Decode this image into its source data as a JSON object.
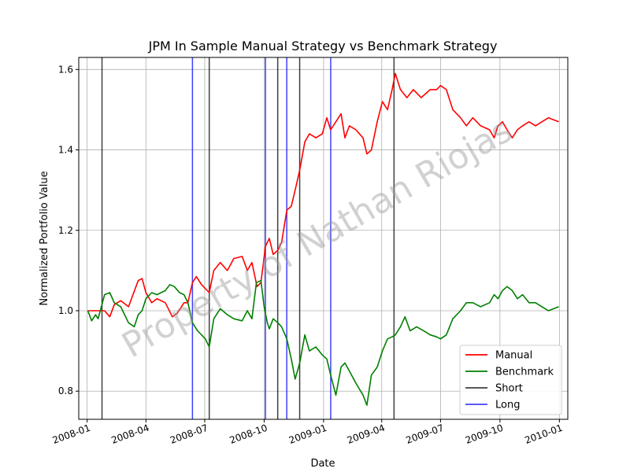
{
  "chart_data": {
    "type": "line",
    "title": "JPM In Sample Manual Strategy vs Benchmark Strategy",
    "xlabel": "Date",
    "ylabel": "Normalized Portfolio Value",
    "xlim": [
      "2007-12-19",
      "2010-01-14"
    ],
    "ylim": [
      0.73,
      1.63
    ],
    "x_ticks": [
      "2008-01",
      "2008-04",
      "2008-07",
      "2008-10",
      "2009-01",
      "2009-04",
      "2009-07",
      "2009-10",
      "2010-01"
    ],
    "y_ticks": [
      0.8,
      1.0,
      1.2,
      1.4,
      1.6
    ],
    "grid": true,
    "legend_position": "lower right",
    "watermark": "Property of Nathan Riojas",
    "series": [
      {
        "name": "Manual",
        "color": "#ff0000",
        "points": [
          [
            "2008-01-02",
            1.0
          ],
          [
            "2008-01-28",
            1.0
          ],
          [
            "2008-02-05",
            0.985
          ],
          [
            "2008-02-12",
            1.015
          ],
          [
            "2008-02-22",
            1.025
          ],
          [
            "2008-03-05",
            1.01
          ],
          [
            "2008-03-20",
            1.075
          ],
          [
            "2008-03-26",
            1.08
          ],
          [
            "2008-04-01",
            1.045
          ],
          [
            "2008-04-10",
            1.02
          ],
          [
            "2008-04-18",
            1.03
          ],
          [
            "2008-05-01",
            1.02
          ],
          [
            "2008-05-12",
            0.985
          ],
          [
            "2008-05-20",
            0.995
          ],
          [
            "2008-05-30",
            1.02
          ],
          [
            "2008-06-05",
            1.02
          ],
          [
            "2008-06-12",
            1.07
          ],
          [
            "2008-06-18",
            1.085
          ],
          [
            "2008-06-26",
            1.065
          ],
          [
            "2008-07-08",
            1.045
          ],
          [
            "2008-07-15",
            1.1
          ],
          [
            "2008-07-25",
            1.12
          ],
          [
            "2008-08-05",
            1.1
          ],
          [
            "2008-08-15",
            1.13
          ],
          [
            "2008-08-28",
            1.135
          ],
          [
            "2008-09-05",
            1.1
          ],
          [
            "2008-09-12",
            1.12
          ],
          [
            "2008-09-20",
            1.06
          ],
          [
            "2008-09-26",
            1.07
          ],
          [
            "2008-10-03",
            1.16
          ],
          [
            "2008-10-09",
            1.18
          ],
          [
            "2008-10-15",
            1.14
          ],
          [
            "2008-10-22",
            1.15
          ],
          [
            "2008-10-28",
            1.17
          ],
          [
            "2008-11-05",
            1.25
          ],
          [
            "2008-11-12",
            1.26
          ],
          [
            "2008-11-18",
            1.3
          ],
          [
            "2008-11-25",
            1.35
          ],
          [
            "2008-12-03",
            1.42
          ],
          [
            "2008-12-10",
            1.44
          ],
          [
            "2008-12-20",
            1.43
          ],
          [
            "2008-12-30",
            1.44
          ],
          [
            "2009-01-06",
            1.48
          ],
          [
            "2009-01-12",
            1.45
          ],
          [
            "2009-01-20",
            1.47
          ],
          [
            "2009-01-28",
            1.49
          ],
          [
            "2009-02-03",
            1.43
          ],
          [
            "2009-02-10",
            1.46
          ],
          [
            "2009-02-20",
            1.45
          ],
          [
            "2009-03-03",
            1.43
          ],
          [
            "2009-03-09",
            1.39
          ],
          [
            "2009-03-16",
            1.4
          ],
          [
            "2009-03-25",
            1.47
          ],
          [
            "2009-04-02",
            1.52
          ],
          [
            "2009-04-10",
            1.5
          ],
          [
            "2009-04-17",
            1.55
          ],
          [
            "2009-04-22",
            1.59
          ],
          [
            "2009-04-30",
            1.55
          ],
          [
            "2009-05-10",
            1.53
          ],
          [
            "2009-05-20",
            1.55
          ],
          [
            "2009-06-01",
            1.53
          ],
          [
            "2009-06-15",
            1.55
          ],
          [
            "2009-06-25",
            1.55
          ],
          [
            "2009-07-01",
            1.56
          ],
          [
            "2009-07-10",
            1.55
          ],
          [
            "2009-07-20",
            1.5
          ],
          [
            "2009-08-01",
            1.48
          ],
          [
            "2009-08-10",
            1.46
          ],
          [
            "2009-08-20",
            1.48
          ],
          [
            "2009-09-01",
            1.46
          ],
          [
            "2009-09-15",
            1.45
          ],
          [
            "2009-09-22",
            1.43
          ],
          [
            "2009-09-28",
            1.46
          ],
          [
            "2009-10-05",
            1.47
          ],
          [
            "2009-10-12",
            1.45
          ],
          [
            "2009-10-20",
            1.43
          ],
          [
            "2009-10-28",
            1.45
          ],
          [
            "2009-11-05",
            1.46
          ],
          [
            "2009-11-15",
            1.47
          ],
          [
            "2009-11-25",
            1.46
          ],
          [
            "2009-12-05",
            1.47
          ],
          [
            "2009-12-15",
            1.48
          ],
          [
            "2009-12-31",
            1.47
          ]
        ]
      },
      {
        "name": "Benchmark",
        "color": "#008000",
        "points": [
          [
            "2008-01-02",
            1.0
          ],
          [
            "2008-01-08",
            0.975
          ],
          [
            "2008-01-14",
            0.99
          ],
          [
            "2008-01-18",
            0.98
          ],
          [
            "2008-01-28",
            1.04
          ],
          [
            "2008-02-05",
            1.045
          ],
          [
            "2008-02-12",
            1.02
          ],
          [
            "2008-02-22",
            1.01
          ],
          [
            "2008-03-05",
            0.97
          ],
          [
            "2008-03-14",
            0.96
          ],
          [
            "2008-03-20",
            0.99
          ],
          [
            "2008-03-26",
            1.0
          ],
          [
            "2008-04-01",
            1.03
          ],
          [
            "2008-04-10",
            1.045
          ],
          [
            "2008-04-18",
            1.04
          ],
          [
            "2008-05-01",
            1.05
          ],
          [
            "2008-05-08",
            1.065
          ],
          [
            "2008-05-15",
            1.06
          ],
          [
            "2008-05-23",
            1.045
          ],
          [
            "2008-05-30",
            1.04
          ],
          [
            "2008-06-05",
            1.02
          ],
          [
            "2008-06-12",
            0.97
          ],
          [
            "2008-06-20",
            0.95
          ],
          [
            "2008-06-26",
            0.94
          ],
          [
            "2008-07-02",
            0.93
          ],
          [
            "2008-07-08",
            0.91
          ],
          [
            "2008-07-15",
            0.98
          ],
          [
            "2008-07-25",
            1.005
          ],
          [
            "2008-08-05",
            0.99
          ],
          [
            "2008-08-15",
            0.98
          ],
          [
            "2008-08-28",
            0.975
          ],
          [
            "2008-09-05",
            1.0
          ],
          [
            "2008-09-12",
            0.98
          ],
          [
            "2008-09-19",
            1.07
          ],
          [
            "2008-09-26",
            1.075
          ],
          [
            "2008-10-01",
            1.01
          ],
          [
            "2008-10-06",
            0.97
          ],
          [
            "2008-10-09",
            0.955
          ],
          [
            "2008-10-15",
            0.98
          ],
          [
            "2008-10-22",
            0.97
          ],
          [
            "2008-10-28",
            0.96
          ],
          [
            "2008-11-05",
            0.93
          ],
          [
            "2008-11-12",
            0.88
          ],
          [
            "2008-11-18",
            0.83
          ],
          [
            "2008-11-25",
            0.87
          ],
          [
            "2008-12-03",
            0.94
          ],
          [
            "2008-12-10",
            0.9
          ],
          [
            "2008-12-20",
            0.91
          ],
          [
            "2008-12-30",
            0.89
          ],
          [
            "2009-01-06",
            0.88
          ],
          [
            "2009-01-12",
            0.84
          ],
          [
            "2009-01-20",
            0.79
          ],
          [
            "2009-01-28",
            0.86
          ],
          [
            "2009-02-03",
            0.87
          ],
          [
            "2009-02-10",
            0.85
          ],
          [
            "2009-02-20",
            0.82
          ],
          [
            "2009-03-03",
            0.79
          ],
          [
            "2009-03-09",
            0.765
          ],
          [
            "2009-03-16",
            0.84
          ],
          [
            "2009-03-25",
            0.86
          ],
          [
            "2009-04-02",
            0.9
          ],
          [
            "2009-04-10",
            0.93
          ],
          [
            "2009-04-17",
            0.935
          ],
          [
            "2009-04-22",
            0.94
          ],
          [
            "2009-04-30",
            0.96
          ],
          [
            "2009-05-07",
            0.985
          ],
          [
            "2009-05-15",
            0.95
          ],
          [
            "2009-05-25",
            0.96
          ],
          [
            "2009-06-05",
            0.95
          ],
          [
            "2009-06-15",
            0.94
          ],
          [
            "2009-06-25",
            0.935
          ],
          [
            "2009-07-01",
            0.93
          ],
          [
            "2009-07-10",
            0.94
          ],
          [
            "2009-07-20",
            0.98
          ],
          [
            "2009-08-01",
            1.0
          ],
          [
            "2009-08-10",
            1.02
          ],
          [
            "2009-08-20",
            1.02
          ],
          [
            "2009-09-01",
            1.01
          ],
          [
            "2009-09-15",
            1.02
          ],
          [
            "2009-09-22",
            1.04
          ],
          [
            "2009-09-28",
            1.03
          ],
          [
            "2009-10-05",
            1.05
          ],
          [
            "2009-10-12",
            1.06
          ],
          [
            "2009-10-20",
            1.05
          ],
          [
            "2009-10-28",
            1.03
          ],
          [
            "2009-11-05",
            1.04
          ],
          [
            "2009-11-15",
            1.02
          ],
          [
            "2009-11-25",
            1.02
          ],
          [
            "2009-12-05",
            1.01
          ],
          [
            "2009-12-15",
            1.0
          ],
          [
            "2009-12-31",
            1.01
          ]
        ]
      }
    ],
    "short_signals": [
      "2008-01-24",
      "2008-07-08",
      "2008-10-22",
      "2008-11-25",
      "2009-04-20"
    ],
    "long_signals": [
      "2008-06-12",
      "2008-10-03",
      "2008-11-05",
      "2009-01-12"
    ],
    "vline_colors": {
      "short": "#000000",
      "long": "#0000ff"
    },
    "legend": [
      {
        "label": "Manual",
        "color": "#ff0000"
      },
      {
        "label": "Benchmark",
        "color": "#008000"
      },
      {
        "label": "Short",
        "color": "#000000"
      },
      {
        "label": "Long",
        "color": "#0000ff"
      }
    ]
  }
}
